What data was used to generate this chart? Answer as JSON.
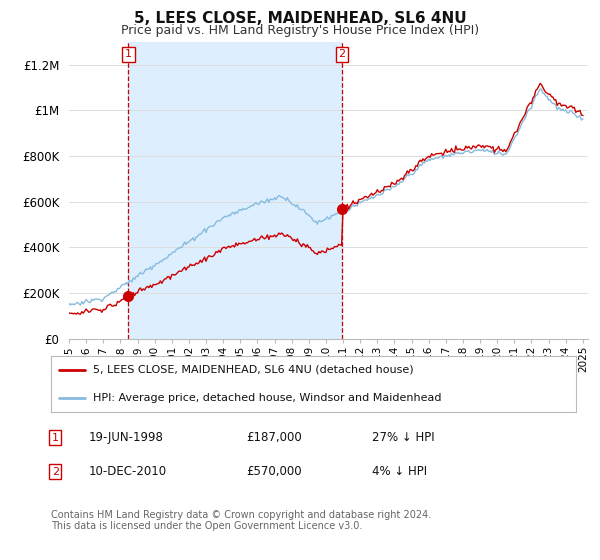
{
  "title": "5, LEES CLOSE, MAIDENHEAD, SL6 4NU",
  "subtitle": "Price paid vs. HM Land Registry's House Price Index (HPI)",
  "legend_line1": "5, LEES CLOSE, MAIDENHEAD, SL6 4NU (detached house)",
  "legend_line2": "HPI: Average price, detached house, Windsor and Maidenhead",
  "footnote": "Contains HM Land Registry data © Crown copyright and database right 2024.\nThis data is licensed under the Open Government Licence v3.0.",
  "sale1_label": "1",
  "sale1_date": "19-JUN-1998",
  "sale1_price": "£187,000",
  "sale1_hpi": "27% ↓ HPI",
  "sale2_label": "2",
  "sale2_date": "10-DEC-2010",
  "sale2_price": "£570,000",
  "sale2_hpi": "4% ↓ HPI",
  "price_line_color": "#cc0000",
  "hpi_line_color": "#88bbdd",
  "shade_color": "#ddeeff",
  "sale_marker_color": "#cc0000",
  "vline_color": "#cc0000",
  "background_color": "#ffffff",
  "grid_color": "#dddddd",
  "ylim": [
    0,
    1300000
  ],
  "yticks": [
    0,
    200000,
    400000,
    600000,
    800000,
    1000000,
    1200000
  ],
  "ylabel_texts": [
    "£0",
    "£200K",
    "£400K",
    "£600K",
    "£800K",
    "£1M",
    "£1.2M"
  ],
  "sale1_year": 1998.47,
  "sale1_price_val": 187000,
  "sale2_year": 2010.94,
  "sale2_price_val": 570000,
  "xlim_start": 1995.0,
  "xlim_end": 2025.3
}
